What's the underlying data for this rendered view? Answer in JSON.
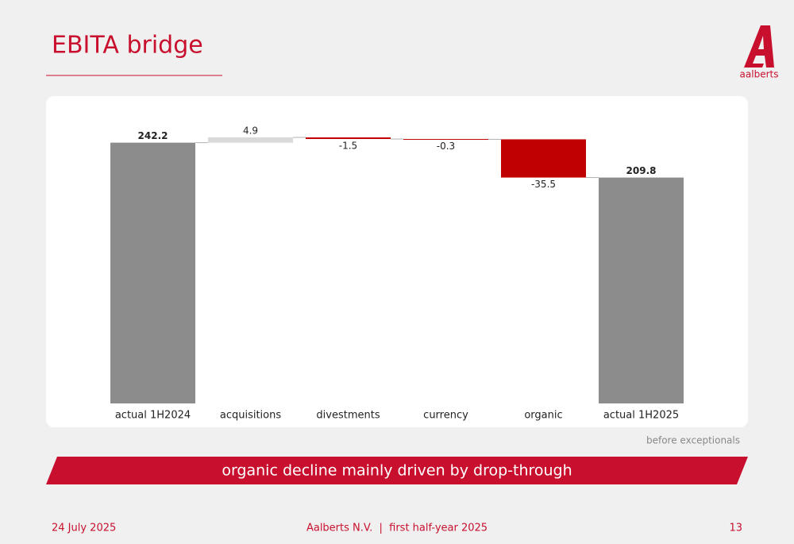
{
  "header": {
    "title": "EBITA bridge",
    "logo": "aalberts"
  },
  "chart_data": {
    "type": "waterfall",
    "categories": [
      "actual 1H2024",
      "acquisitions",
      "divestments",
      "currency",
      "organic",
      "actual 1H2025"
    ],
    "values": [
      242.2,
      4.9,
      -1.5,
      -0.3,
      -35.5,
      209.8
    ],
    "total_color": "#8c8c8c",
    "increase_color": "#d9d9d9",
    "decrease_color": "#c00000"
  },
  "note": "before exceptionals",
  "banner": "organic decline mainly driven by drop-through",
  "footer": {
    "date": "24 July 2025",
    "center": "Aalberts N.V.  |  first half-year 2025",
    "page": "13"
  }
}
